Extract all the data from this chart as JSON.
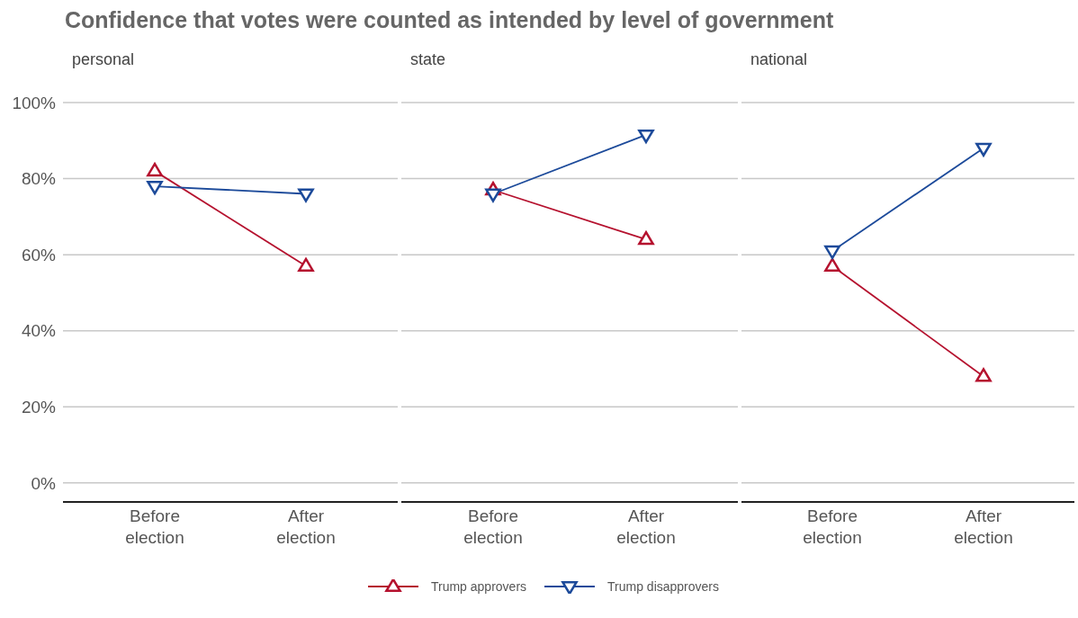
{
  "chart_data": [
    {
      "type": "line",
      "title": "Confidence that votes were counted as intended by level of government",
      "subtitle": "personal",
      "categories": [
        "Before election",
        "After election"
      ],
      "series": [
        {
          "name": "Trump approvers",
          "color": "#b5112e",
          "marker": "triangle",
          "values": [
            82,
            57
          ]
        },
        {
          "name": "Trump disapprovers",
          "color": "#1c4a9a",
          "marker": "triangle-down",
          "values": [
            78,
            76
          ]
        }
      ],
      "ylim": [
        -5,
        100
      ],
      "yticks": [
        {
          "value": 0,
          "label": "0%"
        },
        {
          "value": 20,
          "label": "20%"
        },
        {
          "value": 40,
          "label": "40%"
        },
        {
          "value": 60,
          "label": "60%"
        },
        {
          "value": 80,
          "label": "80%"
        },
        {
          "value": 100,
          "label": "100%"
        }
      ],
      "grid": "y",
      "legend": "bottom"
    },
    {
      "type": "line",
      "subtitle": "state",
      "categories": [
        "Before election",
        "After election"
      ],
      "series": [
        {
          "color": "#b5112e",
          "marker": "triangle",
          "values": [
            77,
            64
          ]
        },
        {
          "color": "#1c4a9a",
          "marker": "triangle-down",
          "values": [
            76,
            91.5
          ]
        }
      ],
      "ylim": [
        -5,
        100
      ],
      "yticks": [
        0,
        20,
        40,
        60,
        80,
        100
      ],
      "grid": "y",
      "tick_labels": "x"
    },
    {
      "type": "line",
      "subtitle": "national",
      "categories": [
        "Before election",
        "After election"
      ],
      "series": [
        {
          "color": "#b5112e",
          "marker": "triangle",
          "values": [
            57,
            28
          ]
        },
        {
          "color": "#1c4a9a",
          "marker": "triangle-down",
          "values": [
            61,
            88
          ]
        }
      ],
      "ylim": [
        -5,
        100
      ],
      "yticks": [
        0,
        20,
        40,
        60,
        80,
        100
      ],
      "grid": "y",
      "tick_labels": "x"
    }
  ]
}
